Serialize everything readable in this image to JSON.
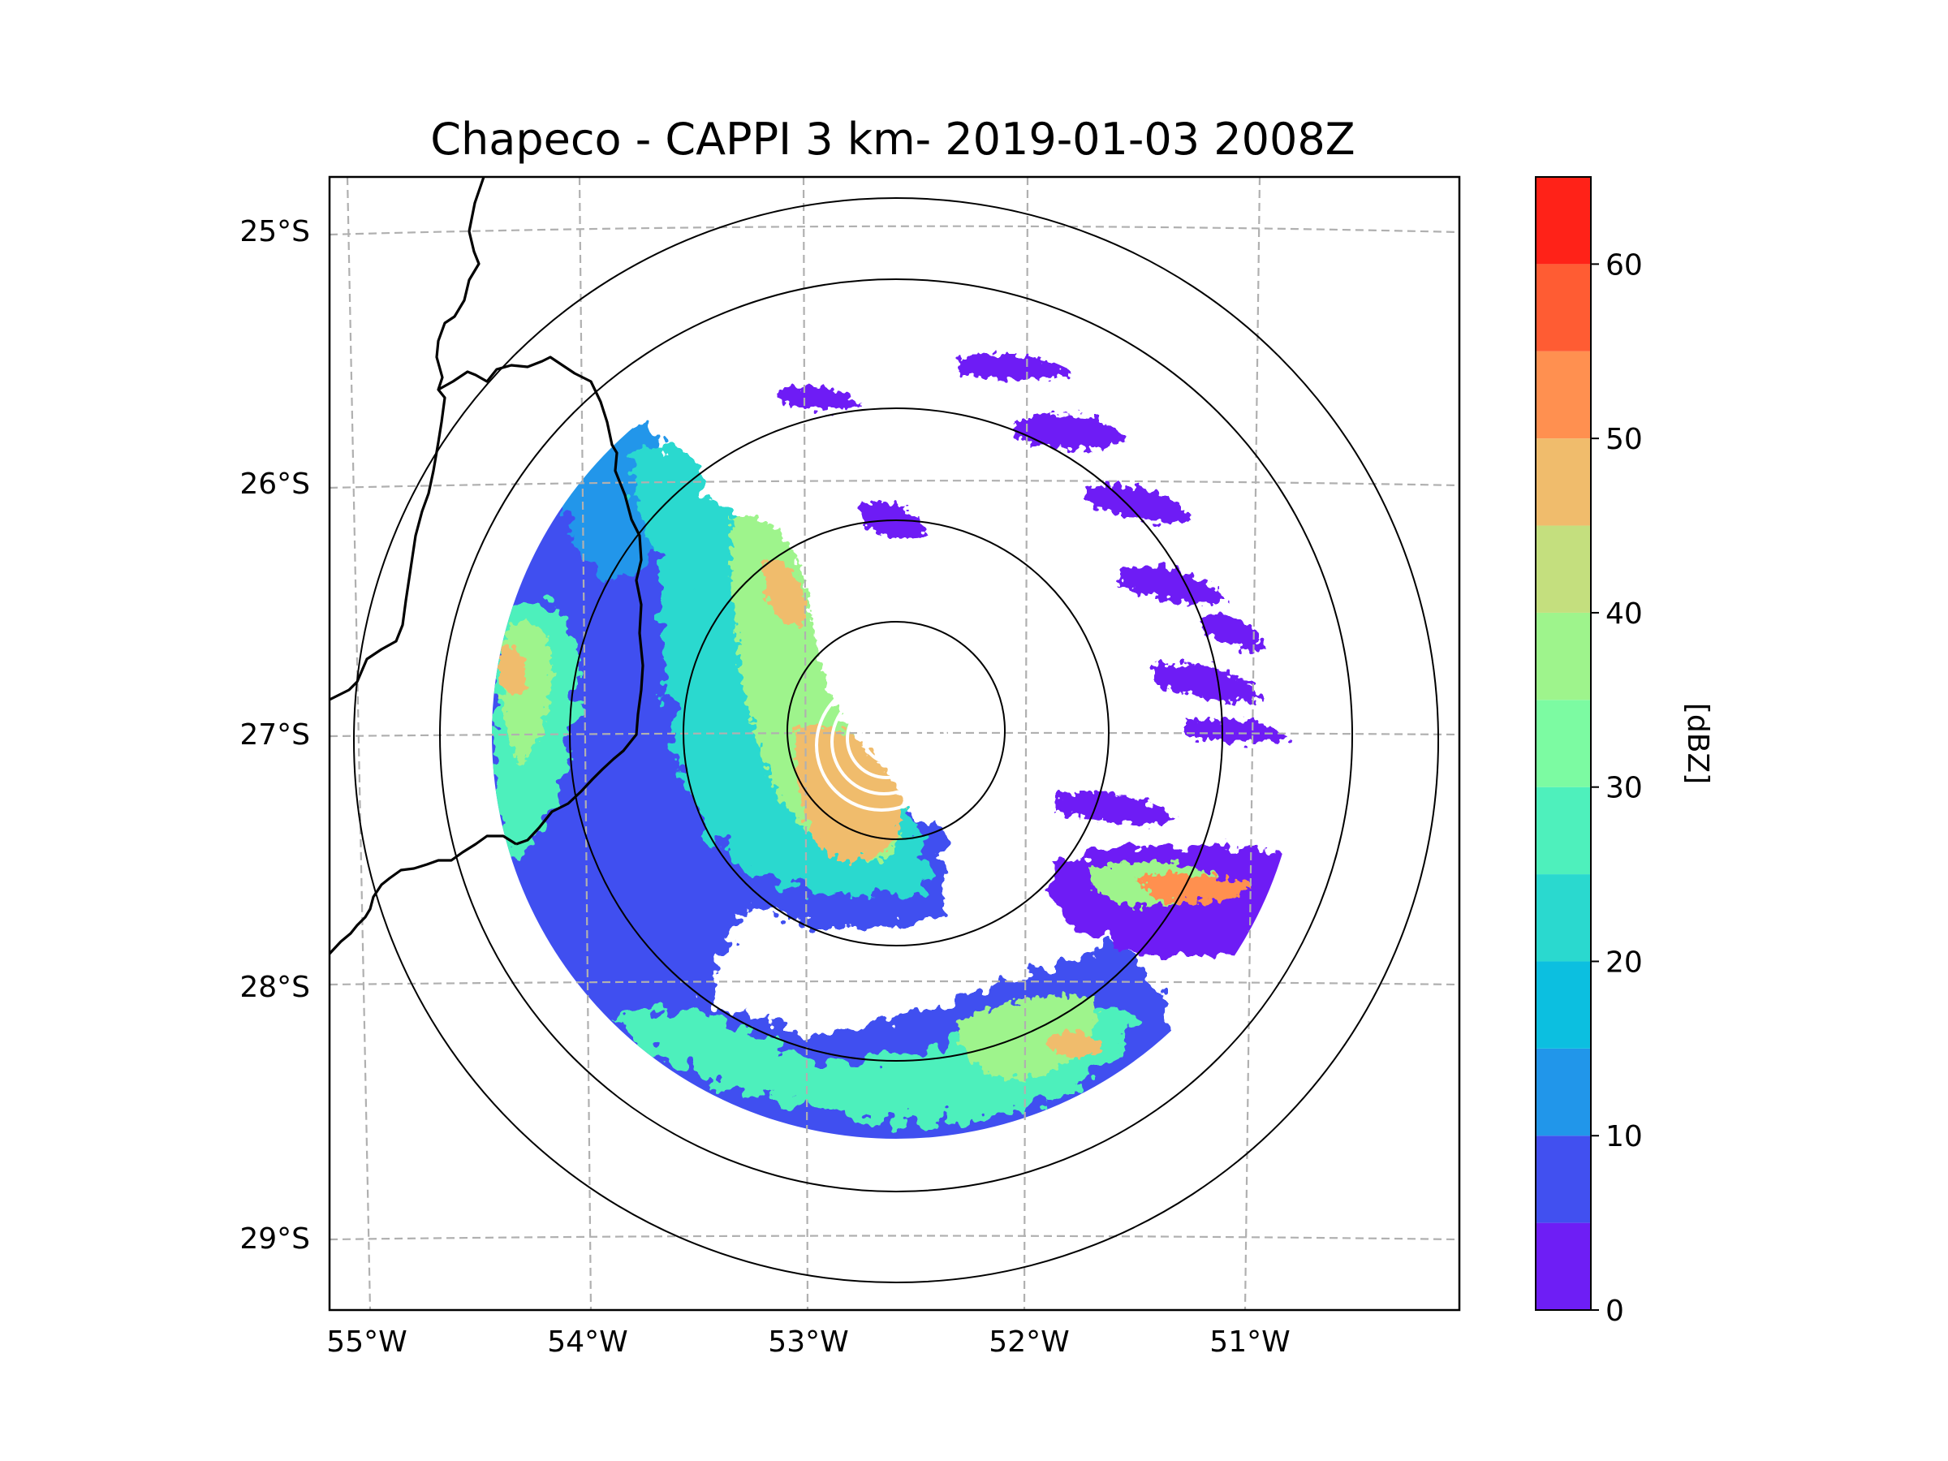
{
  "title": "Chapeco - CAPPI 3 km- 2019-01-03 2008Z",
  "map": {
    "type": "radar_cappi",
    "lon_range": [
      -55.18,
      -50.08
    ],
    "lat_range": [
      -29.28,
      -24.78
    ],
    "lat_ticks": [
      {
        "value": -25,
        "label": "25°S"
      },
      {
        "value": -26,
        "label": "26°S"
      },
      {
        "value": -27,
        "label": "27°S"
      },
      {
        "value": -28,
        "label": "28°S"
      },
      {
        "value": -29,
        "label": "29°S"
      }
    ],
    "lon_ticks": [
      {
        "value": -55,
        "label": "55°W"
      },
      {
        "value": -54,
        "label": "54°W"
      },
      {
        "value": -53,
        "label": "53°W"
      },
      {
        "value": -52,
        "label": "52°W"
      },
      {
        "value": -51,
        "label": "51°W"
      }
    ],
    "radar_center": {
      "lon": -52.6,
      "lat": -27.0
    },
    "range_rings_km": [
      50,
      100,
      150,
      200,
      250
    ],
    "data_range_km": 180,
    "gridlines": true
  },
  "colorbar": {
    "label": "[dBZ]",
    "min": 0,
    "max": 65,
    "step": 5,
    "tick_values": [
      0,
      10,
      20,
      30,
      40,
      50,
      60
    ],
    "tick_labels": [
      "0",
      "10",
      "20",
      "30",
      "40",
      "50",
      "60"
    ],
    "colors": [
      "#6e1ef5",
      "#4150f0",
      "#2196ea",
      "#0cbfe0",
      "#2ad9cf",
      "#4ef0bc",
      "#7cfba2",
      "#9ef48c",
      "#c4df7e",
      "#f0bc6c",
      "#ff9050",
      "#ff5c33",
      "#ff2218"
    ]
  }
}
